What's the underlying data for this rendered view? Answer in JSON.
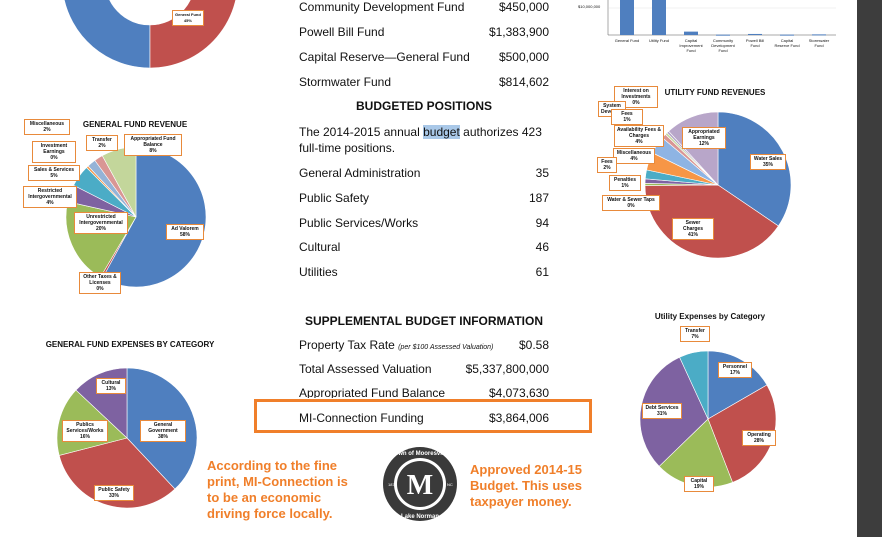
{
  "budget_lines": [
    {
      "label": "Community Development Fund",
      "value": "$450,000"
    },
    {
      "label": "Powell Bill Fund",
      "value": "$1,383,900"
    },
    {
      "label": "Capital Reserve—General Fund",
      "value": "$500,000"
    },
    {
      "label": "Stormwater Fund",
      "value": "$814,602"
    }
  ],
  "positions": {
    "heading": "BUDGETED POSITIONS",
    "intro_1": "The 2014-2015 annual ",
    "intro_highlight": "budget",
    "intro_2": " authorizes 423 full-time positions.",
    "rows": [
      {
        "label": "General Administration",
        "value": "35"
      },
      {
        "label": "Public Safety",
        "value": "187"
      },
      {
        "label": "Public Services/Works",
        "value": "94"
      },
      {
        "label": "Cultural",
        "value": "46"
      },
      {
        "label": "Utilities",
        "value": "61"
      }
    ]
  },
  "supplemental": {
    "heading": "SUPPLEMENTAL BUDGET INFORMATION",
    "rows": [
      {
        "label": "Property Tax Rate",
        "sub": "(per $100 Assessed Valuation)",
        "value": "$0.58"
      },
      {
        "label": "Total Assessed Valuation",
        "sub": "",
        "value": "$5,337,800,000"
      },
      {
        "label": "Appropriated Fund Balance",
        "sub": "",
        "value": "$4,073,630"
      },
      {
        "label": "MI-Connection Funding",
        "sub": "",
        "value": "$3,864,006"
      }
    ]
  },
  "annotations": {
    "left": "According to the fine print, MI-Connection is to be an economic driving force locally.",
    "right": "Approved 2014-15 Budget. This uses taxpayer money."
  },
  "seal": {
    "letter": "M",
    "top_text": "Town of Mooresville",
    "bottom_text": "Lake Norman",
    "side_left": "1873",
    "side_right": "NC"
  },
  "chart_data": [
    {
      "type": "pie",
      "title": "GENERAL FUND REVENUE",
      "slices": [
        {
          "label": "Ad Valorem",
          "pct_label": "58%",
          "value": 58,
          "color": "#4f7fbf"
        },
        {
          "label": "Other Taxes & Licenses",
          "pct_label": "0%",
          "value": 0.5,
          "color": "#c0504d"
        },
        {
          "label": "Unrestricted Intergovernmental",
          "pct_label": "20%",
          "value": 20,
          "color": "#9bbb59"
        },
        {
          "label": "Restricted Intergovernmental",
          "pct_label": "4%",
          "value": 4,
          "color": "#7e62a1"
        },
        {
          "label": "Sales & Services",
          "pct_label": "5%",
          "value": 5,
          "color": "#4bacc6"
        },
        {
          "label": "Investment Earnings",
          "pct_label": "0%",
          "value": 0.5,
          "color": "#f79646"
        },
        {
          "label": "Miscellaneous",
          "pct_label": "2%",
          "value": 2,
          "color": "#95b3d7"
        },
        {
          "label": "Transfer",
          "pct_label": "2%",
          "value": 2,
          "color": "#d99694"
        },
        {
          "label": "Appropriated Fund Balance",
          "pct_label": "8%",
          "value": 8,
          "color": "#c3d69b"
        }
      ]
    },
    {
      "type": "pie",
      "title": "UTILITY FUND REVENUES",
      "slices": [
        {
          "label": "Water Sales",
          "pct_label": "35%",
          "value": 35,
          "color": "#4f7fbf"
        },
        {
          "label": "Sewer Charges",
          "pct_label": "41%",
          "value": 41,
          "color": "#c0504d"
        },
        {
          "label": "Water & Sewer Taps",
          "pct_label": "0%",
          "value": 0.5,
          "color": "#9bbb59"
        },
        {
          "label": "Penalties",
          "pct_label": "1%",
          "value": 1,
          "color": "#7e62a1"
        },
        {
          "label": "Fees",
          "pct_label": "2%",
          "value": 2,
          "color": "#4bacc6"
        },
        {
          "label": "Miscellaneous",
          "pct_label": "4%",
          "value": 4,
          "color": "#f79646"
        },
        {
          "label": "Availability Fees & Charges",
          "pct_label": "4%",
          "value": 4,
          "color": "#8eb4e3"
        },
        {
          "label": "Fees",
          "pct_label": "1%",
          "value": 1,
          "color": "#d99694"
        },
        {
          "label": "System Development",
          "pct_label": "",
          "value": 0.5,
          "color": "#c3d69b"
        },
        {
          "label": "Interest on Investments",
          "pct_label": "0%",
          "value": 0.5,
          "color": "#b2a1c7"
        },
        {
          "label": "Appropriated Earnings",
          "pct_label": "12%",
          "value": 12,
          "color": "#b8a6c9"
        }
      ]
    },
    {
      "type": "pie",
      "title": "GENERAL FUND EXPENSES BY CATEGORY",
      "slices": [
        {
          "label": "General Government",
          "pct_label": "38%",
          "value": 38,
          "color": "#4f7fbf"
        },
        {
          "label": "Public Safety",
          "pct_label": "33%",
          "value": 33,
          "color": "#c0504d"
        },
        {
          "label": "Publics Services/Works",
          "pct_label": "16%",
          "value": 16,
          "color": "#9bbb59"
        },
        {
          "label": "Cultural",
          "pct_label": "13%",
          "value": 13,
          "color": "#7e62a1"
        }
      ]
    },
    {
      "type": "pie",
      "title": "Utility Expenses by Category",
      "slices": [
        {
          "label": "Personnel",
          "pct_label": "17%",
          "value": 17,
          "color": "#4f7fbf"
        },
        {
          "label": "Operating",
          "pct_label": "28%",
          "value": 28,
          "color": "#c0504d"
        },
        {
          "label": "Capital",
          "pct_label": "19%",
          "value": 19,
          "color": "#9bbb59"
        },
        {
          "label": "Debt Services",
          "pct_label": "31%",
          "value": 31,
          "color": "#7e62a1"
        },
        {
          "label": "Transfer",
          "pct_label": "7%",
          "value": 7,
          "color": "#4bacc6"
        }
      ]
    },
    {
      "type": "bar",
      "title": "",
      "ytick": "$10,000,000",
      "categories": [
        "General Fund",
        "Utility Fund",
        "Capital Improvement Fund",
        "Community Development Fund",
        "Powell Bill Fund",
        "Capital Reserve Fund",
        "Stormwater Fund"
      ],
      "values": [
        60000000,
        60000000,
        4500000,
        450000,
        1383900,
        500000,
        814602
      ],
      "color": "#4f7fbf"
    },
    {
      "type": "pie",
      "title": "",
      "slices": [
        {
          "label": "General Fund",
          "pct_label": "45%",
          "value": 45,
          "color": "#4f7fbf"
        },
        {
          "label": "",
          "value": 55,
          "color": "#c0504d"
        }
      ]
    }
  ]
}
